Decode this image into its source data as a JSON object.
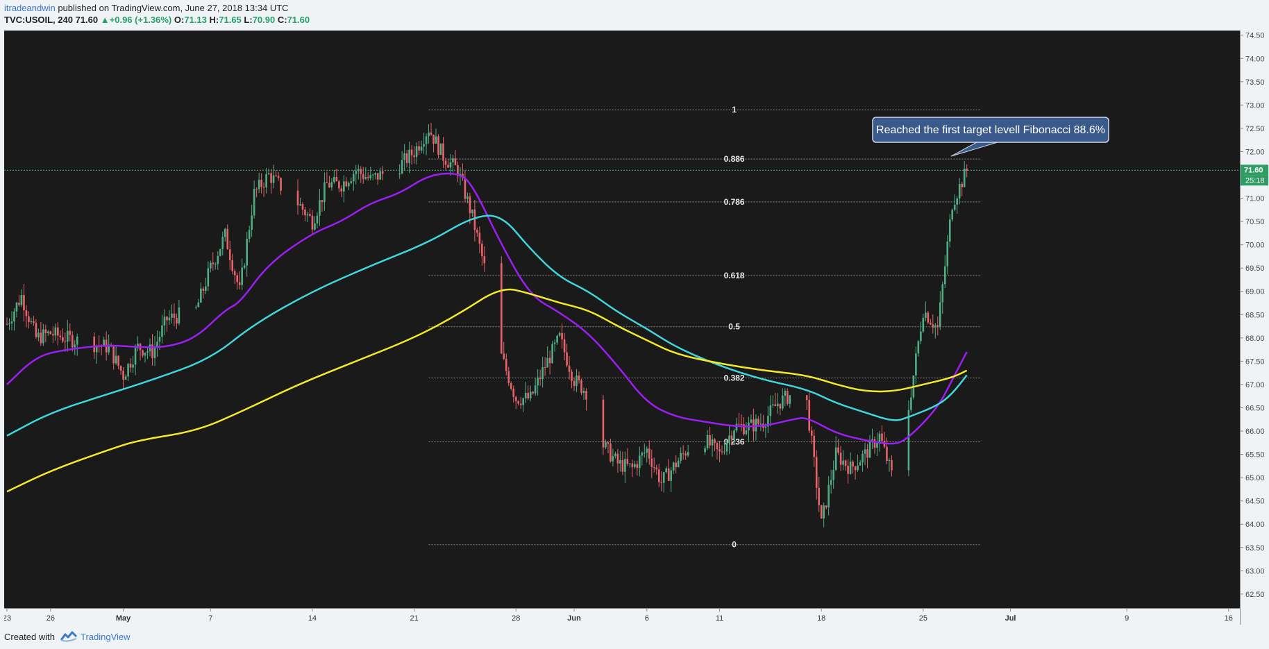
{
  "header": {
    "user": "itradeandwin",
    "published": "published on TradingView.com, June 27, 2018 13:34 UTC",
    "symbol": "TVC:USOIL, 240",
    "last": "71.60",
    "change": "+0.96 (+1.36%)",
    "o_label": "O:",
    "o": "71.13",
    "h_label": "H:",
    "h": "71.65",
    "l_label": "L:",
    "l": "70.90",
    "c_label": "C:",
    "c": "71.60"
  },
  "footer": {
    "created_with": "Created with",
    "brand": "TradingView"
  },
  "colors": {
    "background": "#1a1a1a",
    "up": "#4fae85",
    "down": "#e8636b",
    "ma_purple": "#9b1ff2",
    "ma_cyan": "#3fd6dc",
    "ma_yellow": "#f4ea2a",
    "fib_line": "#8a8a8a",
    "callout": "#3a5a8c",
    "price_tag": "#2e9c63"
  },
  "chart_data": {
    "type": "candlestick",
    "title": "TVC:USOIL, 240",
    "timeframe": "240",
    "x_range": [
      "2018-04-23",
      "2018-07-16"
    ],
    "ylim": [
      62.2,
      74.6
    ],
    "x_ticks": [
      {
        "label": "23",
        "date": "2018-04-23"
      },
      {
        "label": "26",
        "date": "2018-04-26"
      },
      {
        "label": "May",
        "date": "2018-05-01"
      },
      {
        "label": "7",
        "date": "2018-05-07"
      },
      {
        "label": "14",
        "date": "2018-05-14"
      },
      {
        "label": "21",
        "date": "2018-05-21"
      },
      {
        "label": "28",
        "date": "2018-05-28"
      },
      {
        "label": "Jun",
        "date": "2018-06-01"
      },
      {
        "label": "6",
        "date": "2018-06-06"
      },
      {
        "label": "11",
        "date": "2018-06-11"
      },
      {
        "label": "18",
        "date": "2018-06-18"
      },
      {
        "label": "25",
        "date": "2018-06-25"
      },
      {
        "label": "Jul",
        "date": "2018-07-01"
      },
      {
        "label": "9",
        "date": "2018-07-09"
      },
      {
        "label": "16",
        "date": "2018-07-16"
      }
    ],
    "y_ticks": [
      "62.50",
      "63.00",
      "63.50",
      "64.00",
      "64.50",
      "65.00",
      "65.50",
      "66.00",
      "66.50",
      "67.00",
      "67.50",
      "68.00",
      "68.50",
      "69.00",
      "69.50",
      "70.00",
      "70.50",
      "71.00",
      "71.50",
      "72.00",
      "72.50",
      "73.00",
      "73.50",
      "74.00",
      "74.50"
    ],
    "price_tag": "71.60",
    "countdown": "25:18",
    "current_price": 71.6,
    "fibonacci": {
      "start": "2018-05-22",
      "end": "2018-06-29",
      "levels": [
        {
          "label": "1",
          "price": 72.9
        },
        {
          "label": "0.886",
          "price": 71.84
        },
        {
          "label": "0.786",
          "price": 70.92
        },
        {
          "label": "0.618",
          "price": 69.34
        },
        {
          "label": "0.5",
          "price": 68.24
        },
        {
          "label": "0.382",
          "price": 67.14
        },
        {
          "label": "0.236",
          "price": 65.77
        },
        {
          "label": "0",
          "price": 63.56
        }
      ]
    },
    "annotation": {
      "text": "Reached the first target levell Fibonacci 88.6%",
      "date": "2018-06-27",
      "price": 71.9
    },
    "moving_averages": [
      {
        "color": "#9b1ff2",
        "points": [
          [
            "2018-04-23",
            67.0
          ],
          [
            "2018-04-25",
            67.6
          ],
          [
            "2018-04-27",
            67.75
          ],
          [
            "2018-04-30",
            67.85
          ],
          [
            "2018-05-02",
            67.8
          ],
          [
            "2018-05-04",
            67.8
          ],
          [
            "2018-05-06",
            68.0
          ],
          [
            "2018-05-08",
            68.6
          ],
          [
            "2018-05-09",
            68.75
          ],
          [
            "2018-05-11",
            69.6
          ],
          [
            "2018-05-14",
            70.25
          ],
          [
            "2018-05-16",
            70.5
          ],
          [
            "2018-05-18",
            70.9
          ],
          [
            "2018-05-20",
            71.1
          ],
          [
            "2018-05-22",
            71.5
          ],
          [
            "2018-05-24",
            71.55
          ],
          [
            "2018-05-25",
            71.3
          ],
          [
            "2018-05-27",
            70.0
          ],
          [
            "2018-05-29",
            68.9
          ],
          [
            "2018-05-31",
            68.55
          ],
          [
            "2018-06-02",
            68.1
          ],
          [
            "2018-06-04",
            67.4
          ],
          [
            "2018-06-06",
            66.6
          ],
          [
            "2018-06-08",
            66.3
          ],
          [
            "2018-06-10",
            66.2
          ],
          [
            "2018-06-12",
            66.1
          ],
          [
            "2018-06-14",
            66.1
          ],
          [
            "2018-06-16",
            66.25
          ],
          [
            "2018-06-17",
            66.3
          ],
          [
            "2018-06-19",
            65.95
          ],
          [
            "2018-06-21",
            65.8
          ],
          [
            "2018-06-23",
            65.7
          ],
          [
            "2018-06-24",
            65.85
          ],
          [
            "2018-06-26",
            66.5
          ],
          [
            "2018-06-27",
            67.1
          ],
          [
            "2018-06-28",
            67.7
          ]
        ]
      },
      {
        "color": "#3fd6dc",
        "points": [
          [
            "2018-04-23",
            65.9
          ],
          [
            "2018-04-26",
            66.4
          ],
          [
            "2018-04-30",
            66.8
          ],
          [
            "2018-05-03",
            67.1
          ],
          [
            "2018-05-07",
            67.55
          ],
          [
            "2018-05-10",
            68.3
          ],
          [
            "2018-05-14",
            69.0
          ],
          [
            "2018-05-18",
            69.55
          ],
          [
            "2018-05-22",
            70.05
          ],
          [
            "2018-05-25",
            70.6
          ],
          [
            "2018-05-27",
            70.65
          ],
          [
            "2018-05-29",
            69.9
          ],
          [
            "2018-05-31",
            69.3
          ],
          [
            "2018-06-02",
            69.0
          ],
          [
            "2018-06-04",
            68.55
          ],
          [
            "2018-06-06",
            68.2
          ],
          [
            "2018-06-08",
            67.8
          ],
          [
            "2018-06-11",
            67.4
          ],
          [
            "2018-06-14",
            67.1
          ],
          [
            "2018-06-17",
            66.9
          ],
          [
            "2018-06-19",
            66.6
          ],
          [
            "2018-06-21",
            66.4
          ],
          [
            "2018-06-23",
            66.2
          ],
          [
            "2018-06-24",
            66.3
          ],
          [
            "2018-06-26",
            66.55
          ],
          [
            "2018-06-27",
            66.8
          ],
          [
            "2018-06-28",
            67.2
          ]
        ]
      },
      {
        "color": "#f4ea2a",
        "points": [
          [
            "2018-04-23",
            64.7
          ],
          [
            "2018-04-26",
            65.15
          ],
          [
            "2018-04-30",
            65.6
          ],
          [
            "2018-05-02",
            65.8
          ],
          [
            "2018-05-06",
            66.0
          ],
          [
            "2018-05-09",
            66.4
          ],
          [
            "2018-05-13",
            67.0
          ],
          [
            "2018-05-17",
            67.5
          ],
          [
            "2018-05-21",
            68.0
          ],
          [
            "2018-05-24",
            68.5
          ],
          [
            "2018-05-27",
            69.1
          ],
          [
            "2018-05-29",
            68.95
          ],
          [
            "2018-05-31",
            68.75
          ],
          [
            "2018-06-02",
            68.6
          ],
          [
            "2018-06-04",
            68.25
          ],
          [
            "2018-06-06",
            67.95
          ],
          [
            "2018-06-08",
            67.65
          ],
          [
            "2018-06-11",
            67.45
          ],
          [
            "2018-06-14",
            67.3
          ],
          [
            "2018-06-17",
            67.2
          ],
          [
            "2018-06-19",
            67.0
          ],
          [
            "2018-06-21",
            66.85
          ],
          [
            "2018-06-23",
            66.85
          ],
          [
            "2018-06-25",
            67.0
          ],
          [
            "2018-06-27",
            67.15
          ],
          [
            "2018-06-28",
            67.3
          ]
        ]
      }
    ],
    "price_path": [
      [
        "2018-04-23",
        68.3
      ],
      [
        "2018-04-24",
        68.9
      ],
      [
        "2018-04-25",
        68.0
      ],
      [
        "2018-04-26",
        68.1
      ],
      [
        "2018-04-27",
        68.0
      ],
      [
        "2018-04-30",
        67.8
      ],
      [
        "2018-05-01",
        67.2
      ],
      [
        "2018-05-02",
        67.8
      ],
      [
        "2018-05-03",
        67.7
      ],
      [
        "2018-05-04",
        68.4
      ],
      [
        "2018-05-06",
        68.6
      ],
      [
        "2018-05-07",
        69.5
      ],
      [
        "2018-05-08",
        70.2
      ],
      [
        "2018-05-09",
        69.0
      ],
      [
        "2018-05-10",
        71.1
      ],
      [
        "2018-05-11",
        71.5
      ],
      [
        "2018-05-13",
        70.9
      ],
      [
        "2018-05-14",
        70.5
      ],
      [
        "2018-05-15",
        71.3
      ],
      [
        "2018-05-16",
        71.3
      ],
      [
        "2018-05-17",
        71.6
      ],
      [
        "2018-05-18",
        71.4
      ],
      [
        "2018-05-20",
        71.7
      ],
      [
        "2018-05-21",
        72.0
      ],
      [
        "2018-05-22",
        72.5
      ],
      [
        "2018-05-23",
        71.9
      ],
      [
        "2018-05-24",
        71.6
      ],
      [
        "2018-05-25",
        70.6
      ],
      [
        "2018-05-26",
        69.3
      ],
      [
        "2018-05-27",
        67.6
      ],
      [
        "2018-05-28",
        66.7
      ],
      [
        "2018-05-29",
        66.7
      ],
      [
        "2018-05-30",
        67.4
      ],
      [
        "2018-05-31",
        68.0
      ],
      [
        "2018-06-01",
        67.1
      ],
      [
        "2018-06-02",
        66.8
      ],
      [
        "2018-06-03",
        65.7
      ],
      [
        "2018-06-04",
        65.3
      ],
      [
        "2018-06-05",
        65.2
      ],
      [
        "2018-06-06",
        65.6
      ],
      [
        "2018-06-07",
        64.9
      ],
      [
        "2018-06-08",
        65.3
      ],
      [
        "2018-06-09",
        65.7
      ],
      [
        "2018-06-10",
        65.8
      ],
      [
        "2018-06-11",
        65.5
      ],
      [
        "2018-06-12",
        66.1
      ],
      [
        "2018-06-13",
        66.1
      ],
      [
        "2018-06-14",
        66.2
      ],
      [
        "2018-06-15",
        66.6
      ],
      [
        "2018-06-16",
        66.8
      ],
      [
        "2018-06-17",
        66.6
      ],
      [
        "2018-06-18",
        64.0
      ],
      [
        "2018-06-19",
        65.5
      ],
      [
        "2018-06-20",
        65.2
      ],
      [
        "2018-06-21",
        65.5
      ],
      [
        "2018-06-22",
        65.9
      ],
      [
        "2018-06-23",
        64.9
      ],
      [
        "2018-06-24",
        66.5
      ],
      [
        "2018-06-25",
        68.6
      ],
      [
        "2018-06-26",
        68.2
      ],
      [
        "2018-06-27",
        70.9
      ],
      [
        "2018-06-28",
        71.6
      ]
    ]
  }
}
